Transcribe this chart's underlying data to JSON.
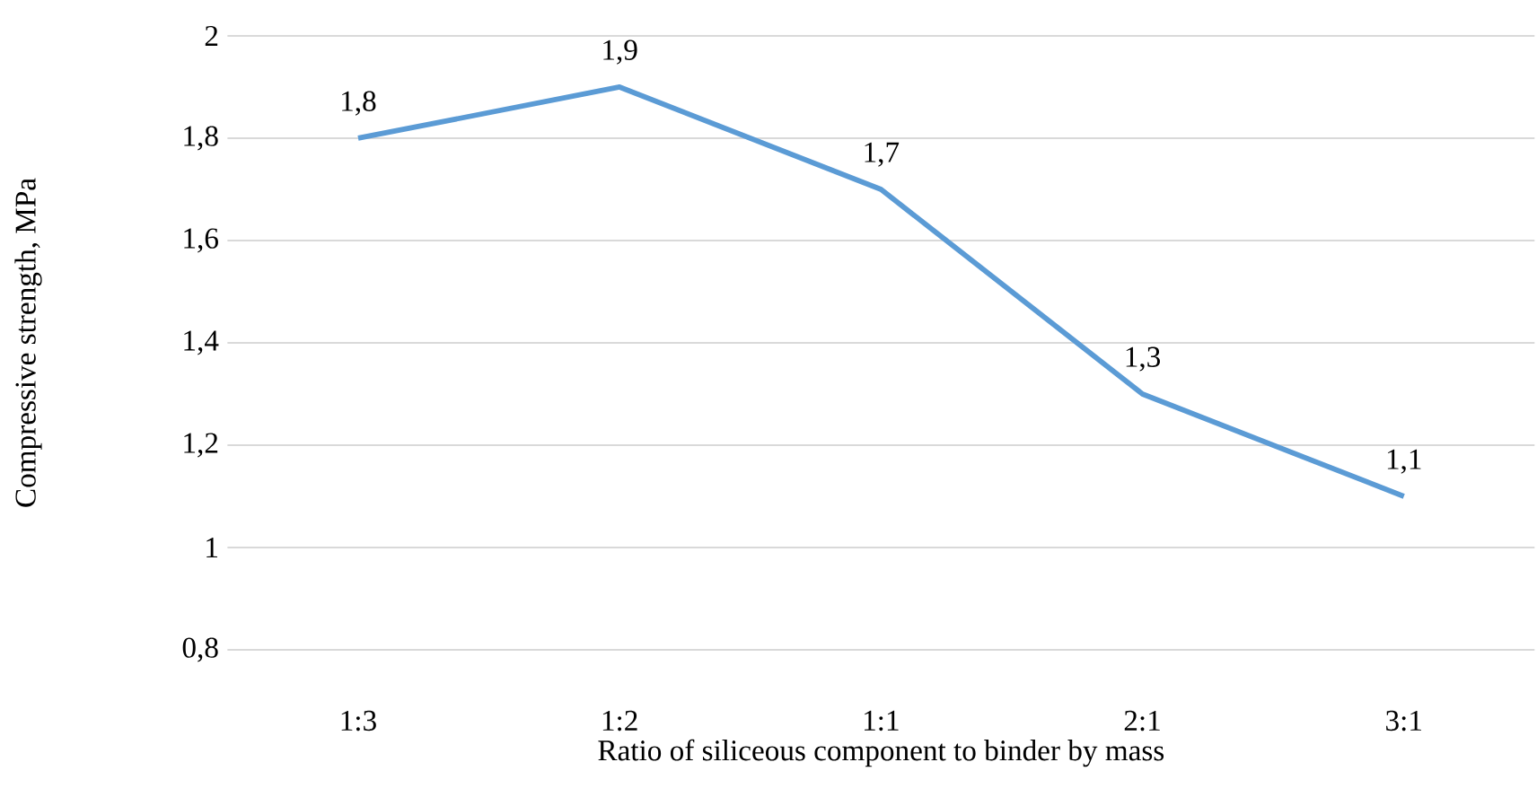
{
  "chart_data": {
    "type": "line",
    "xlabel": "Ratio of siliceous component to binder by mass",
    "ylabel": "Compressive strength, MPa",
    "categories": [
      "1:3",
      "1:2",
      "1:1",
      "2:1",
      "3:1"
    ],
    "series": [
      {
        "color": "#5b9bd5",
        "values": [
          1.8,
          1.9,
          1.7,
          1.3,
          1.1
        ],
        "value_labels": [
          "1,8",
          "1,9",
          "1,7",
          "1,3",
          "1,1"
        ]
      }
    ],
    "ylim": [
      0.8,
      2
    ],
    "yticks": [
      {
        "value": 0.8,
        "label": "0,8"
      },
      {
        "value": 1,
        "label": "1"
      },
      {
        "value": 1.2,
        "label": "1,2"
      },
      {
        "value": 1.4,
        "label": "1,4"
      },
      {
        "value": 1.6,
        "label": "1,6"
      },
      {
        "value": 1.8,
        "label": "1,8"
      },
      {
        "value": 2,
        "label": "2"
      }
    ],
    "grid": "y",
    "marker": "none",
    "line_style": "solid"
  }
}
